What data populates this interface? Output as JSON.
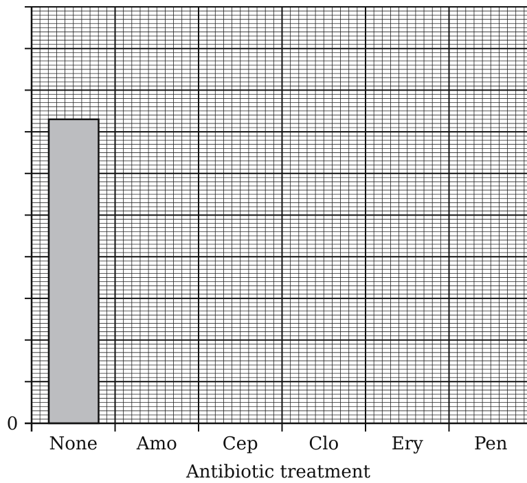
{
  "chart_data": {
    "type": "bar",
    "xlabel": "Antibiotic treatment",
    "ylabel": "",
    "categories": [
      "None",
      "Amo",
      "Cep",
      "Clo",
      "Ery",
      "Pen"
    ],
    "values": [
      7.3,
      null,
      null,
      null,
      null,
      null
    ],
    "ylim": [
      0,
      10
    ],
    "y_tick_labels": [
      "0"
    ],
    "grid": true,
    "bar_color": "#bcbdc0",
    "major_grid_color": "#111111",
    "minor_grid_color": "#222222"
  }
}
